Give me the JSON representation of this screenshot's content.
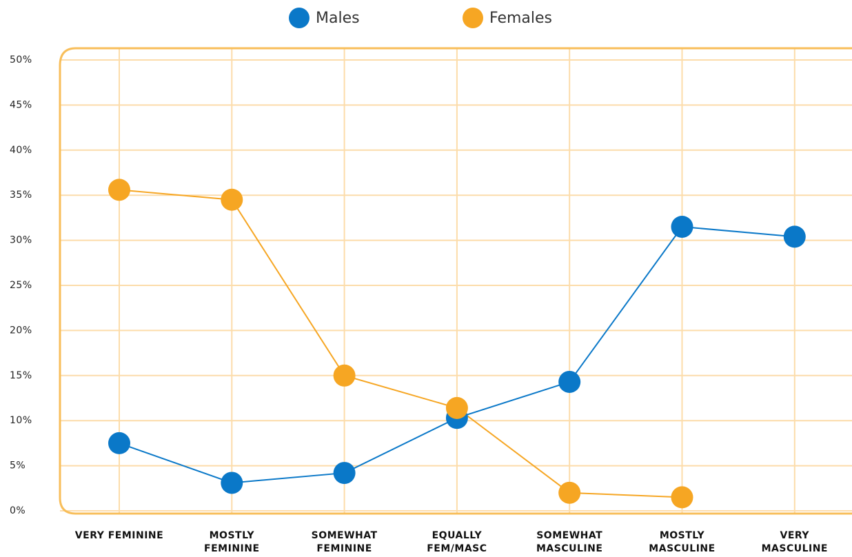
{
  "chart_data": {
    "type": "line",
    "categories": [
      "VERY FEMININE",
      "MOSTLY FEMININE",
      "SOMEWHAT FEMININE",
      "EQUALLY FEM/MASC",
      "SOMEWHAT MASCULINE",
      "MOSTLY MASCULINE",
      "VERY MASCULINE"
    ],
    "series": [
      {
        "name": "Males",
        "color": "#0a78c8",
        "values": [
          7.5,
          3.1,
          4.2,
          10.3,
          14.3,
          31.5,
          30.4
        ]
      },
      {
        "name": "Females",
        "color": "#f6a623",
        "values": [
          35.6,
          34.5,
          15,
          11.4,
          2,
          1.5,
          null
        ]
      }
    ],
    "ylim": [
      0,
      50
    ],
    "yticks": [
      {
        "value": 0,
        "label": "0%"
      },
      {
        "value": 5,
        "label": "5%"
      },
      {
        "value": 10,
        "label": "10%"
      },
      {
        "value": 15,
        "label": "15%"
      },
      {
        "value": 20,
        "label": "20%"
      },
      {
        "value": 25,
        "label": "25%"
      },
      {
        "value": 30,
        "label": "30%"
      },
      {
        "value": 35,
        "label": "35%"
      },
      {
        "value": 40,
        "label": "40%"
      },
      {
        "value": 45,
        "label": "45%"
      },
      {
        "value": 50,
        "label": "50%"
      }
    ],
    "grid": true,
    "legend": "top"
  }
}
